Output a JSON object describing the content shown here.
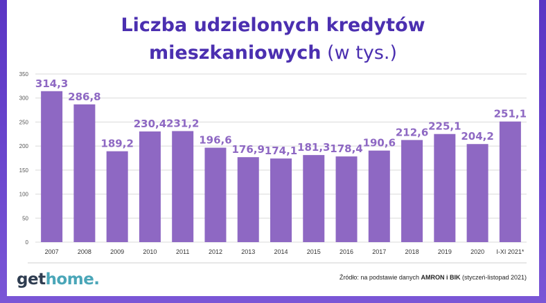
{
  "title": {
    "line1": "Liczba udzielonych kredytów",
    "line2_bold": "mieszkaniowych",
    "line2_light": " (w tys.)"
  },
  "logo": {
    "part1": "get",
    "part2": "home."
  },
  "source": {
    "prefix": "Źródło: na podstawie danych ",
    "bold": "AMRON i BIK",
    "suffix": " (styczeń-listopad 2021)"
  },
  "colors": {
    "bar": "#8e68c3",
    "label": "#8e68c3",
    "title": "#4b2fb0",
    "frame": "#5a35c4"
  },
  "chart_data": {
    "type": "bar",
    "categories": [
      "2007",
      "2008",
      "2009",
      "2010",
      "2011",
      "2012",
      "2013",
      "2014",
      "2015",
      "2016",
      "2017",
      "2018",
      "2019",
      "2020",
      "I-XI 2021*"
    ],
    "values": [
      314.3,
      286.8,
      189.2,
      230.4,
      231.2,
      196.6,
      176.9,
      174.1,
      181.3,
      178.4,
      190.6,
      212.6,
      225.1,
      204.2,
      251.1
    ],
    "value_labels": [
      "314,3",
      "286,8",
      "189,2",
      "230,4",
      "231,2",
      "196,6",
      "176,9",
      "174,1",
      "181,3",
      "178,4",
      "190,6",
      "212,6",
      "225,1",
      "204,2",
      "251,1"
    ],
    "ylim": [
      0,
      350
    ],
    "yticks": [
      0,
      50,
      100,
      150,
      200,
      250,
      300,
      350
    ],
    "grid": true,
    "xlabel": "",
    "ylabel": ""
  }
}
